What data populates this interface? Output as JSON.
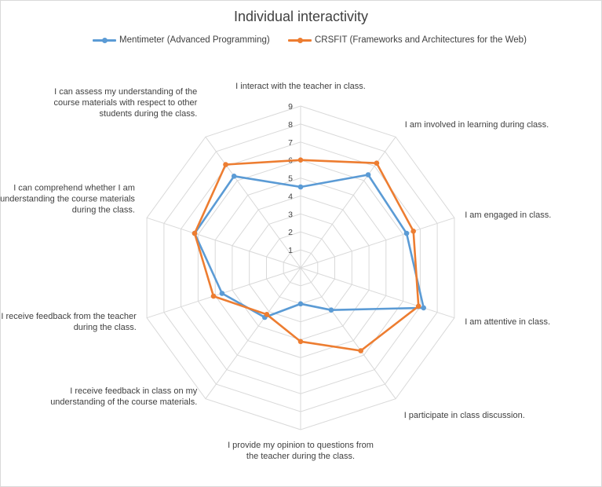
{
  "chart_data": {
    "type": "radar",
    "title": "Individual interactivity",
    "categories": [
      "I interact with the teacher in class.",
      "I am involved in learning during class.",
      "I am engaged in class.",
      "I am attentive in class.",
      "I participate in class discussion.",
      "I provide my opinion to questions from the teacher during the class.",
      "I receive feedback in class on my understanding of the course materials.",
      "I receive feedback from the teacher during the class.",
      "I can comprehend whether I am understanding the course materials during the class.",
      "I can assess my understanding of the course materials with respect to other students during the class."
    ],
    "series": [
      {
        "name": "Mentimeter (Advanced Programming)",
        "color": "#5b9bd5",
        "values": [
          4.5,
          6.4,
          6.2,
          7.2,
          2.9,
          2.0,
          3.4,
          4.6,
          6.2,
          6.3
        ]
      },
      {
        "name": "CRSFIT (Frameworks and Architectures for the Web)",
        "color": "#ed7d31",
        "values": [
          6.0,
          7.2,
          6.6,
          6.9,
          5.7,
          4.1,
          3.2,
          5.1,
          6.2,
          7.1
        ]
      }
    ],
    "rmin": 0,
    "rmax": 9,
    "ticks": [
      "1",
      "2",
      "3",
      "4",
      "5",
      "6",
      "7",
      "8",
      "9"
    ],
    "grid": true,
    "legend_position": "top"
  }
}
